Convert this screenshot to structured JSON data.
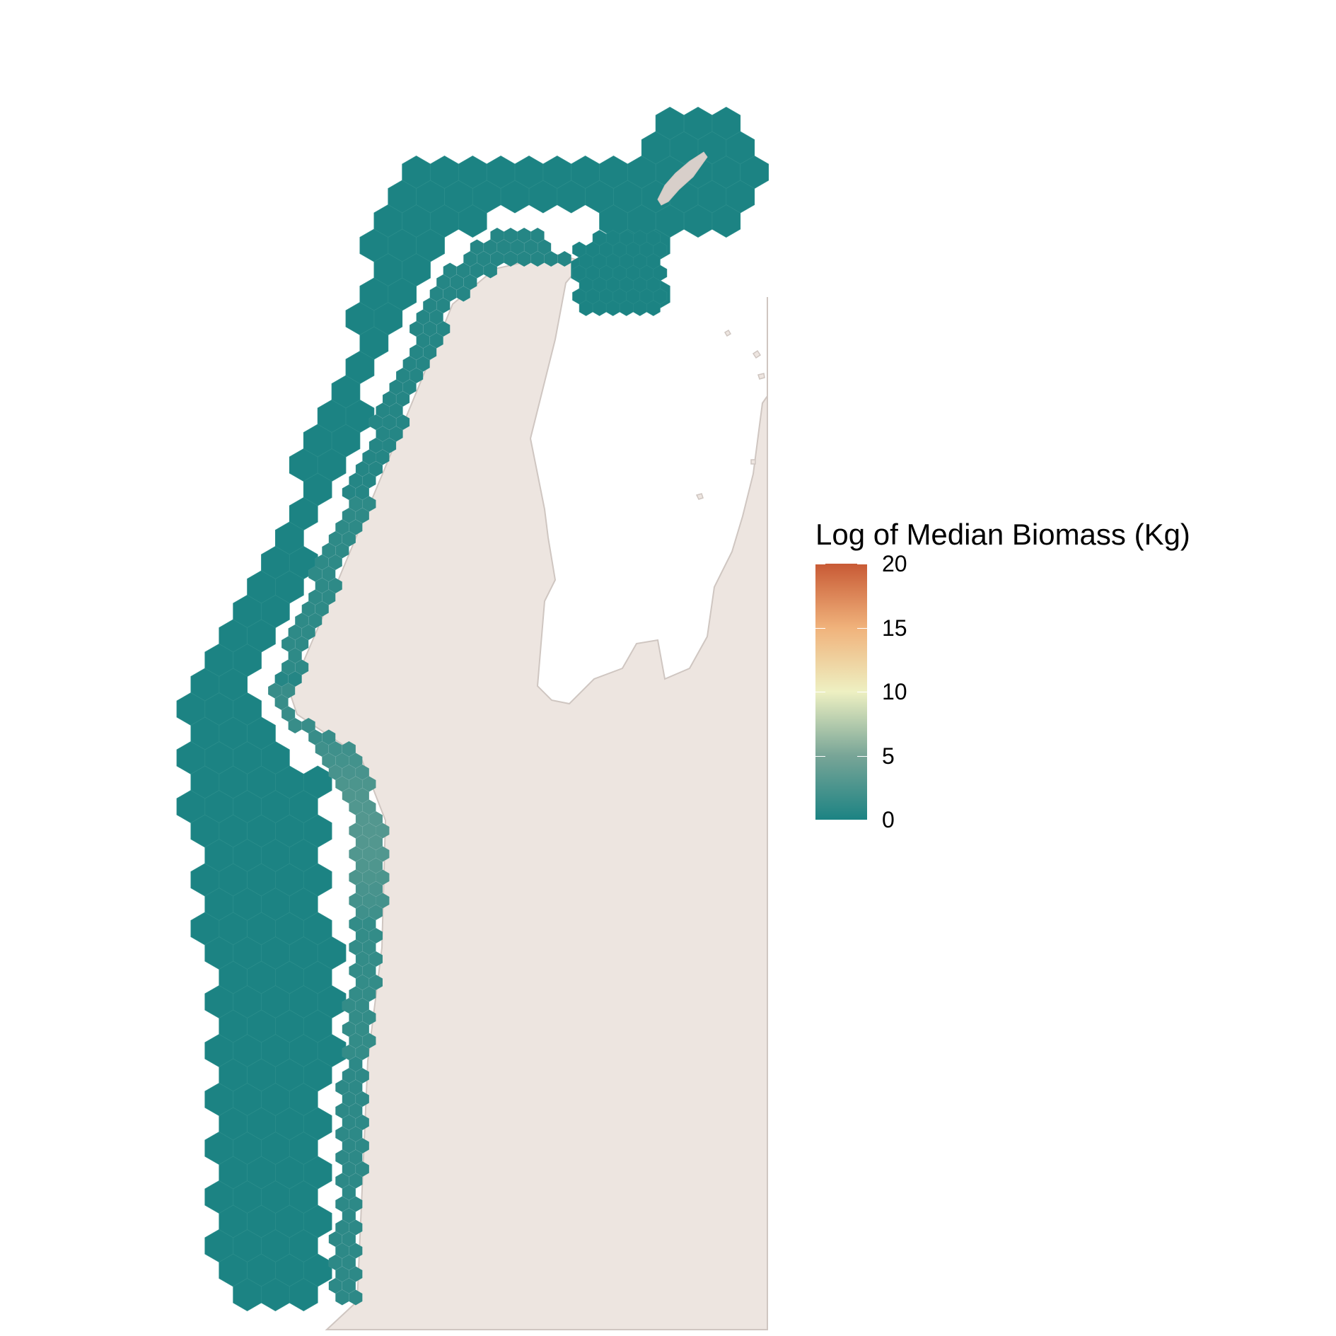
{
  "colors": {
    "background": "#ffffff",
    "land": "#ede5e0",
    "land_outline": "#cfc6c1",
    "low_biomass": "#1c8383",
    "mid_biomass": "#eef0c2",
    "high_biomass": "#c85a35"
  },
  "legend": {
    "title": "Log of Median Biomass (Kg)",
    "ticks": [
      {
        "value": 0,
        "label": "0"
      },
      {
        "value": 5,
        "label": "5"
      },
      {
        "value": 10,
        "label": "10"
      },
      {
        "value": 15,
        "label": "15"
      },
      {
        "value": 20,
        "label": "20"
      }
    ],
    "range": [
      0,
      20
    ],
    "gradient_stops": [
      "#1c8383",
      "#78a597",
      "#eef0c2",
      "#f0b27b",
      "#c85a35"
    ]
  }
}
